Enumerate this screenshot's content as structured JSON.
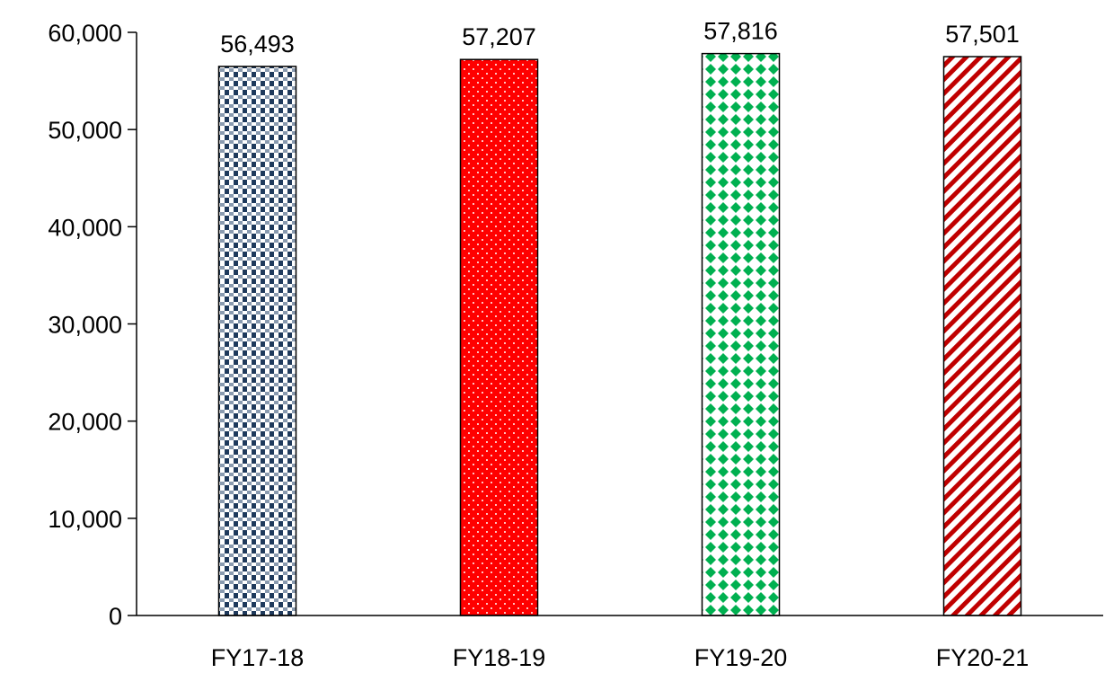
{
  "chart_data": {
    "type": "bar",
    "title": "",
    "xlabel": "",
    "ylabel": "",
    "categories": [
      "FY17-18",
      "FY18-19",
      "FY19-20",
      "FY20-21"
    ],
    "values": [
      56493,
      57207,
      57816,
      57501
    ],
    "data_labels": [
      "56,493",
      "57,207",
      "57,816",
      "57,501"
    ],
    "ylim": [
      0,
      60000
    ],
    "y_ticks": [
      0,
      10000,
      20000,
      30000,
      40000,
      50000,
      60000
    ],
    "y_tick_labels": [
      "0",
      "10,000",
      "20,000",
      "30,000",
      "40,000",
      "50,000",
      "60,000"
    ],
    "grid": false,
    "legend": "none",
    "bar_styles": [
      {
        "pattern": "checker",
        "color": "#1f3a5c"
      },
      {
        "pattern": "dots",
        "color": "#ff0000"
      },
      {
        "pattern": "diamonds",
        "color": "#00b050"
      },
      {
        "pattern": "diagonal-stripes",
        "color": "#c00000"
      }
    ]
  }
}
